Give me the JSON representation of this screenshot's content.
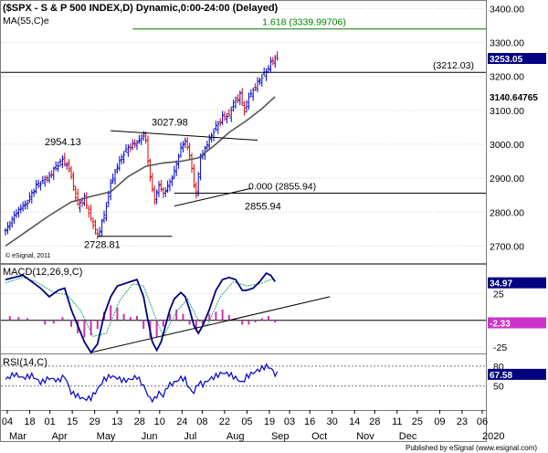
{
  "chart_data": [
    {
      "type": "candlestick",
      "title": "($SPX - S & P 500 INDEX,D) Dynamic,0:00-24:00 (Delayed)",
      "overlay_legend": "MA(55,C)e",
      "copyright": "© eSignal, 2011",
      "ylim": [
        2650,
        3420
      ],
      "yticks": [
        "3400.00",
        "3300.00",
        "3200.00",
        "3100.00",
        "3000.00",
        "2900.00",
        "2800.00",
        "2700.00"
      ],
      "ytick_values": [
        3400,
        3300,
        3200,
        3100,
        3000,
        2900,
        2800,
        2700
      ],
      "price_points": [
        [
          0,
          2745
        ],
        [
          5,
          2800
        ],
        [
          10,
          2830
        ],
        [
          14,
          2878
        ],
        [
          20,
          2905
        ],
        [
          23,
          2935
        ],
        [
          26,
          2954
        ],
        [
          29,
          2930
        ],
        [
          33,
          2820
        ],
        [
          36,
          2840
        ],
        [
          39,
          2780
        ],
        [
          42,
          2728.81
        ],
        [
          45,
          2790
        ],
        [
          48,
          2885
        ],
        [
          51,
          2935
        ],
        [
          54,
          2975
        ],
        [
          57,
          2995
        ],
        [
          60,
          3005
        ],
        [
          63,
          3027.98
        ],
        [
          64,
          3010
        ],
        [
          66,
          2900
        ],
        [
          68,
          2835
        ],
        [
          70,
          2880
        ],
        [
          72,
          2855
        ],
        [
          74,
          2875
        ],
        [
          77,
          2918
        ],
        [
          80,
          2990
        ],
        [
          82,
          3010
        ],
        [
          84,
          2970
        ],
        [
          86,
          2880
        ],
        [
          87,
          2855.94
        ],
        [
          89,
          2960
        ],
        [
          92,
          3000
        ],
        [
          95,
          3040
        ],
        [
          99,
          3080
        ],
        [
          102,
          3085
        ],
        [
          104,
          3120
        ],
        [
          107,
          3145
        ],
        [
          109,
          3100
        ],
        [
          111,
          3140
        ],
        [
          114,
          3170
        ],
        [
          117,
          3200
        ],
        [
          119,
          3215
        ],
        [
          121,
          3240
        ],
        [
          123,
          3253.05
        ]
      ],
      "ma_points": [
        [
          0,
          2700
        ],
        [
          10,
          2745
        ],
        [
          20,
          2790
        ],
        [
          30,
          2830
        ],
        [
          40,
          2848
        ],
        [
          48,
          2860
        ],
        [
          56,
          2905
        ],
        [
          64,
          2935
        ],
        [
          72,
          2945
        ],
        [
          80,
          2950
        ],
        [
          88,
          2960
        ],
        [
          95,
          2995
        ],
        [
          102,
          3035
        ],
        [
          110,
          3070
        ],
        [
          117,
          3105
        ],
        [
          123,
          3140.64765
        ]
      ],
      "price_labels": [
        {
          "text": "3253.05",
          "value": 3253.05
        },
        {
          "text": "3140.64765",
          "value": 3140.64765
        }
      ],
      "annotations": {
        "fib_high": "1.618 (3339.99706)",
        "fib_high_value": 3339.99706,
        "resistance": "(3212.03)",
        "resistance_value": 3212.03,
        "support": "0.000 (2855.94)",
        "support_value": 2855.94,
        "peak_apr": "2954.13",
        "peak_jul": "3027.98",
        "low_jun": "2728.81",
        "low_oct": "2855.94"
      }
    },
    {
      "type": "line",
      "title": "MACD(12,26,9,C)",
      "ylim": [
        -30,
        50
      ],
      "yticks": [
        "25",
        "-25"
      ],
      "ytick_values": [
        25,
        -25
      ],
      "macd_points": [
        [
          0,
          38
        ],
        [
          4,
          40
        ],
        [
          8,
          42
        ],
        [
          12,
          36
        ],
        [
          16,
          30
        ],
        [
          20,
          22
        ],
        [
          24,
          28
        ],
        [
          27,
          30
        ],
        [
          30,
          10
        ],
        [
          33,
          -5
        ],
        [
          36,
          -20
        ],
        [
          39,
          -30
        ],
        [
          42,
          -22
        ],
        [
          45,
          5
        ],
        [
          48,
          22
        ],
        [
          51,
          32
        ],
        [
          54,
          34
        ],
        [
          57,
          36
        ],
        [
          60,
          38
        ],
        [
          63,
          22
        ],
        [
          65,
          0
        ],
        [
          67,
          -20
        ],
        [
          69,
          -28
        ],
        [
          71,
          -20
        ],
        [
          73,
          -5
        ],
        [
          75,
          10
        ],
        [
          77,
          20
        ],
        [
          80,
          26
        ],
        [
          82,
          22
        ],
        [
          84,
          10
        ],
        [
          86,
          -5
        ],
        [
          88,
          -12
        ],
        [
          90,
          -5
        ],
        [
          93,
          10
        ],
        [
          96,
          28
        ],
        [
          99,
          38
        ],
        [
          102,
          40
        ],
        [
          105,
          38
        ],
        [
          108,
          28
        ],
        [
          110,
          28
        ],
        [
          113,
          30
        ],
        [
          116,
          36
        ],
        [
          119,
          44
        ],
        [
          121,
          42
        ],
        [
          123,
          36
        ]
      ],
      "signal_points": [
        [
          0,
          35
        ],
        [
          8,
          40
        ],
        [
          14,
          36
        ],
        [
          22,
          26
        ],
        [
          28,
          24
        ],
        [
          34,
          10
        ],
        [
          40,
          -15
        ],
        [
          46,
          -12
        ],
        [
          52,
          18
        ],
        [
          58,
          34
        ],
        [
          63,
          32
        ],
        [
          68,
          5
        ],
        [
          72,
          -15
        ],
        [
          78,
          8
        ],
        [
          83,
          20
        ],
        [
          88,
          0
        ],
        [
          92,
          -5
        ],
        [
          98,
          22
        ],
        [
          104,
          36
        ],
        [
          110,
          32
        ],
        [
          116,
          34
        ],
        [
          121,
          38
        ],
        [
          123,
          38
        ]
      ],
      "histogram": [
        [
          2,
          4
        ],
        [
          6,
          3
        ],
        [
          10,
          2
        ],
        [
          14,
          0
        ],
        [
          18,
          -4
        ],
        [
          22,
          -3
        ],
        [
          26,
          3
        ],
        [
          30,
          -6
        ],
        [
          33,
          -12
        ],
        [
          36,
          -16
        ],
        [
          39,
          -14
        ],
        [
          42,
          -8
        ],
        [
          45,
          8
        ],
        [
          48,
          14
        ],
        [
          51,
          12
        ],
        [
          54,
          6
        ],
        [
          57,
          3
        ],
        [
          60,
          4
        ],
        [
          63,
          -8
        ],
        [
          66,
          -16
        ],
        [
          69,
          -16
        ],
        [
          72,
          -6
        ],
        [
          75,
          6
        ],
        [
          78,
          10
        ],
        [
          81,
          6
        ],
        [
          84,
          -4
        ],
        [
          87,
          -10
        ],
        [
          90,
          -4
        ],
        [
          93,
          6
        ],
        [
          96,
          8
        ],
        [
          99,
          10
        ],
        [
          102,
          5
        ],
        [
          105,
          2
        ],
        [
          108,
          -4
        ],
        [
          111,
          -4
        ],
        [
          114,
          -2
        ],
        [
          117,
          2
        ],
        [
          120,
          4
        ],
        [
          123,
          -2
        ]
      ],
      "last_values": [
        {
          "text": "34.97",
          "value": 34.97
        },
        {
          "text": "-2.33",
          "value": -2.33
        }
      ],
      "trendline": {
        "start": [
          39,
          -30
        ],
        "end": [
          148,
          22
        ]
      },
      "zero_line": 0
    },
    {
      "type": "line",
      "title": "RSI(14,C)",
      "ylim": [
        15,
        95
      ],
      "yticks": [
        "80",
        "50"
      ],
      "ytick_values": [
        80,
        50
      ],
      "rsi_points": [
        [
          0,
          60
        ],
        [
          4,
          68
        ],
        [
          8,
          62
        ],
        [
          12,
          66
        ],
        [
          16,
          55
        ],
        [
          20,
          62
        ],
        [
          24,
          58
        ],
        [
          27,
          65
        ],
        [
          30,
          40
        ],
        [
          33,
          35
        ],
        [
          36,
          30
        ],
        [
          39,
          32
        ],
        [
          42,
          45
        ],
        [
          45,
          60
        ],
        [
          48,
          65
        ],
        [
          51,
          62
        ],
        [
          54,
          58
        ],
        [
          57,
          60
        ],
        [
          60,
          64
        ],
        [
          63,
          50
        ],
        [
          66,
          30
        ],
        [
          68,
          30
        ],
        [
          70,
          40
        ],
        [
          72,
          35
        ],
        [
          74,
          50
        ],
        [
          77,
          55
        ],
        [
          80,
          62
        ],
        [
          82,
          60
        ],
        [
          84,
          45
        ],
        [
          86,
          40
        ],
        [
          88,
          55
        ],
        [
          90,
          52
        ],
        [
          93,
          60
        ],
        [
          96,
          65
        ],
        [
          99,
          70
        ],
        [
          102,
          68
        ],
        [
          105,
          62
        ],
        [
          108,
          55
        ],
        [
          110,
          64
        ],
        [
          113,
          70
        ],
        [
          116,
          75
        ],
        [
          119,
          80
        ],
        [
          121,
          77
        ],
        [
          123,
          68
        ]
      ],
      "last_value": {
        "text": "67.58",
        "value": 67.58
      }
    }
  ],
  "x_axis": {
    "day_labels": [
      "04",
      "18",
      "01",
      "15",
      "29",
      "13",
      "28",
      "10",
      "24",
      "08",
      "22",
      "05",
      "19",
      "03",
      "16",
      "30",
      "14",
      "28",
      "11",
      "25",
      "09",
      "23",
      "06"
    ],
    "day_label_index": [
      0,
      10,
      19,
      29,
      39,
      49,
      59,
      68,
      78,
      87,
      97,
      107,
      117,
      126,
      135,
      145,
      155,
      164,
      174,
      183,
      193,
      203,
      212
    ],
    "months": [
      "Mar",
      "Apr",
      "May",
      "Jun",
      "Jul",
      "Aug",
      "Sep",
      "Oct",
      "Nov",
      "Dec",
      "2020"
    ],
    "month_index": [
      0,
      19,
      39,
      59,
      78,
      97,
      117,
      135,
      155,
      174,
      212
    ]
  },
  "footer": "Published by eSignal (www.esignal.com)",
  "colors": {
    "price_up": "#0000cc",
    "price_down": "#dd0000",
    "ma": "#555555",
    "fib": "#008000",
    "macd": "#000080",
    "signal": "#20a070",
    "histogram": "#cc33aa",
    "rsi": "#0000cc",
    "grid": "#d0d0d0",
    "label_box": "#000080"
  }
}
